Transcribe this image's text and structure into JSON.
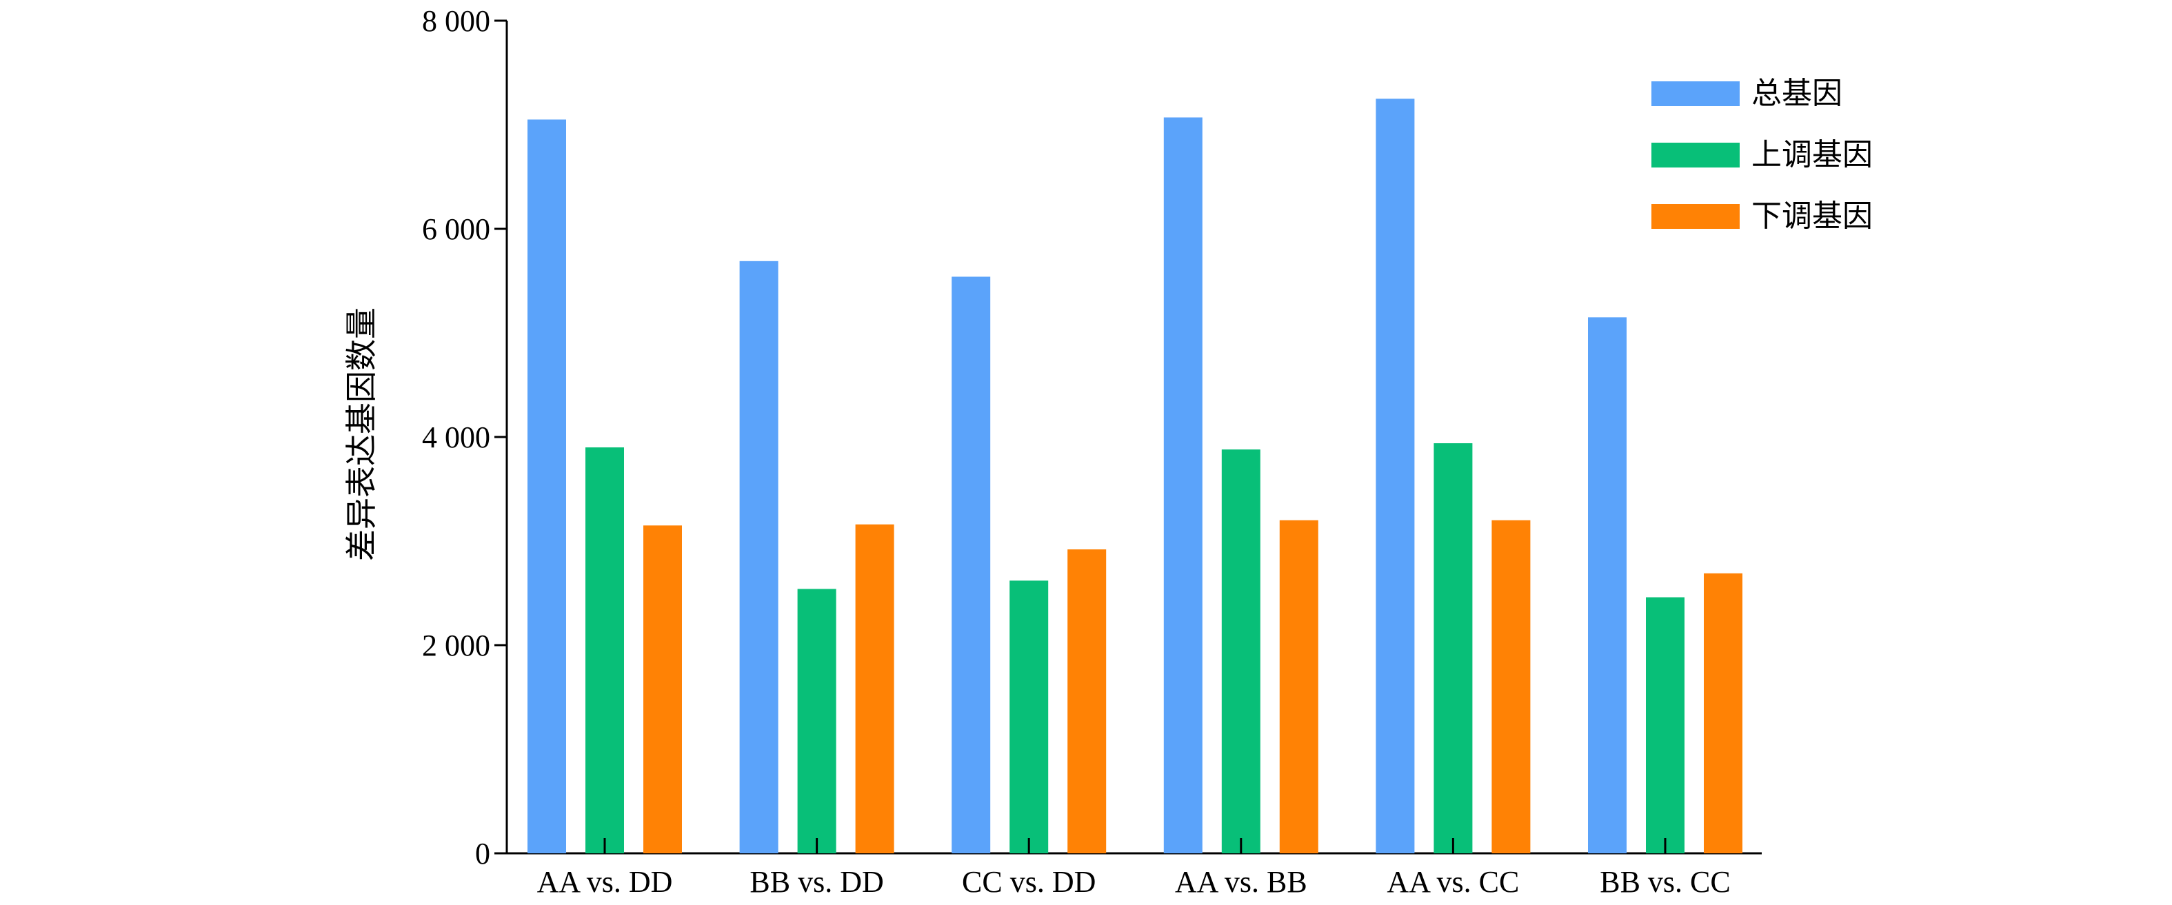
{
  "chart_data": {
    "type": "bar",
    "title": "",
    "xlabel": "",
    "ylabel": "差异表达基因数量",
    "ylim": [
      0,
      8000
    ],
    "yticks": [
      0,
      2000,
      4000,
      6000,
      8000
    ],
    "ytick_labels": [
      "0",
      "2 000",
      "4 000",
      "6 000",
      "8 000"
    ],
    "categories": [
      "AA vs. DD",
      "BB vs. DD",
      "CC vs. DD",
      "AA vs. BB",
      "AA vs. CC",
      "BB vs. CC"
    ],
    "series": [
      {
        "name": "总基因",
        "color": "#5ba3fa",
        "values": [
          7050,
          5690,
          5540,
          7070,
          7250,
          5150
        ]
      },
      {
        "name": "上调基因",
        "color": "#08bf78",
        "values": [
          3900,
          2540,
          2620,
          3880,
          3940,
          2460
        ]
      },
      {
        "name": "下调基因",
        "color": "#ff8205",
        "values": [
          3150,
          3160,
          2920,
          3200,
          3200,
          2690
        ]
      }
    ],
    "legend_position": "top-right",
    "grid": false
  }
}
